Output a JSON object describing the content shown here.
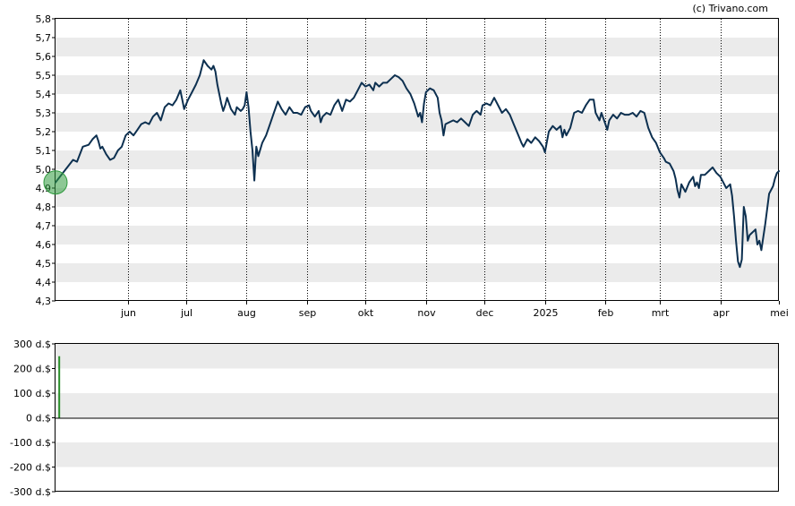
{
  "credit": "(c) Trivano.com",
  "colors": {
    "line": "#0d3050",
    "band": "#ebebeb",
    "marker": "#2f9a3e",
    "volume_bar": "#2a8f2a",
    "frame": "#000000"
  },
  "chart_data": [
    {
      "type": "line",
      "title": "",
      "xlabel": "",
      "ylabel": "",
      "ylim": [
        4.3,
        5.8
      ],
      "grid": true,
      "yticks": [
        "4,3",
        "4,4",
        "4,5",
        "4,6",
        "4,7",
        "4,8",
        "4,9",
        "5,0",
        "5,1",
        "5,2",
        "5,3",
        "5,4",
        "5,5",
        "5,6",
        "5,7",
        "5,8"
      ],
      "xticks": [
        {
          "label": "jun",
          "day": 37
        },
        {
          "label": "jul",
          "day": 67
        },
        {
          "label": "aug",
          "day": 98
        },
        {
          "label": "sep",
          "day": 129
        },
        {
          "label": "okt",
          "day": 159
        },
        {
          "label": "nov",
          "day": 190
        },
        {
          "label": "dec",
          "day": 220
        },
        {
          "label": "2025",
          "day": 251
        },
        {
          "label": "feb",
          "day": 282
        },
        {
          "label": "mrt",
          "day": 310
        },
        {
          "label": "apr",
          "day": 341
        },
        {
          "label": "mei",
          "day": 371
        }
      ],
      "x_range_days": [
        0,
        371
      ],
      "series": [
        {
          "values": [
            [
              0,
              4.93
            ],
            [
              3,
              4.97
            ],
            [
              6,
              5.01
            ],
            [
              9,
              5.05
            ],
            [
              11,
              5.04
            ],
            [
              14,
              5.12
            ],
            [
              17,
              5.13
            ],
            [
              19,
              5.16
            ],
            [
              21,
              5.18
            ],
            [
              22,
              5.15
            ],
            [
              23,
              5.11
            ],
            [
              24,
              5.12
            ],
            [
              26,
              5.08
            ],
            [
              28,
              5.05
            ],
            [
              30,
              5.06
            ],
            [
              32,
              5.1
            ],
            [
              34,
              5.12
            ],
            [
              36,
              5.18
            ],
            [
              38,
              5.2
            ],
            [
              40,
              5.18
            ],
            [
              42,
              5.21
            ],
            [
              44,
              5.24
            ],
            [
              46,
              5.25
            ],
            [
              48,
              5.24
            ],
            [
              50,
              5.28
            ],
            [
              52,
              5.3
            ],
            [
              54,
              5.26
            ],
            [
              56,
              5.33
            ],
            [
              58,
              5.35
            ],
            [
              60,
              5.34
            ],
            [
              62,
              5.37
            ],
            [
              64,
              5.42
            ],
            [
              65,
              5.37
            ],
            [
              66,
              5.32
            ],
            [
              68,
              5.37
            ],
            [
              70,
              5.41
            ],
            [
              72,
              5.45
            ],
            [
              74,
              5.5
            ],
            [
              76,
              5.58
            ],
            [
              78,
              5.55
            ],
            [
              80,
              5.53
            ],
            [
              81,
              5.55
            ],
            [
              82,
              5.52
            ],
            [
              83,
              5.45
            ],
            [
              85,
              5.35
            ],
            [
              86,
              5.31
            ],
            [
              87,
              5.34
            ],
            [
              88,
              5.38
            ],
            [
              90,
              5.32
            ],
            [
              92,
              5.29
            ],
            [
              93,
              5.33
            ],
            [
              95,
              5.31
            ],
            [
              96,
              5.32
            ],
            [
              97,
              5.34
            ],
            [
              98,
              5.41
            ],
            [
              99,
              5.33
            ],
            [
              100,
              5.2
            ],
            [
              101,
              5.1
            ],
            [
              102,
              4.94
            ],
            [
              103,
              5.12
            ],
            [
              104,
              5.07
            ],
            [
              106,
              5.14
            ],
            [
              108,
              5.18
            ],
            [
              110,
              5.24
            ],
            [
              112,
              5.3
            ],
            [
              114,
              5.36
            ],
            [
              116,
              5.32
            ],
            [
              118,
              5.29
            ],
            [
              120,
              5.33
            ],
            [
              122,
              5.3
            ],
            [
              124,
              5.3
            ],
            [
              126,
              5.29
            ],
            [
              128,
              5.33
            ],
            [
              130,
              5.34
            ],
            [
              131,
              5.31
            ],
            [
              133,
              5.28
            ],
            [
              135,
              5.31
            ],
            [
              136,
              5.25
            ],
            [
              137,
              5.28
            ],
            [
              139,
              5.3
            ],
            [
              141,
              5.29
            ],
            [
              143,
              5.34
            ],
            [
              145,
              5.37
            ],
            [
              147,
              5.31
            ],
            [
              149,
              5.37
            ],
            [
              151,
              5.36
            ],
            [
              153,
              5.38
            ],
            [
              155,
              5.42
            ],
            [
              157,
              5.46
            ],
            [
              159,
              5.44
            ],
            [
              161,
              5.45
            ],
            [
              163,
              5.42
            ],
            [
              164,
              5.46
            ],
            [
              166,
              5.44
            ],
            [
              168,
              5.46
            ],
            [
              170,
              5.46
            ],
            [
              172,
              5.48
            ],
            [
              174,
              5.5
            ],
            [
              176,
              5.49
            ],
            [
              178,
              5.47
            ],
            [
              180,
              5.43
            ],
            [
              182,
              5.4
            ],
            [
              184,
              5.35
            ],
            [
              186,
              5.28
            ],
            [
              187,
              5.3
            ],
            [
              188,
              5.25
            ],
            [
              189,
              5.35
            ],
            [
              190,
              5.41
            ],
            [
              192,
              5.43
            ],
            [
              194,
              5.42
            ],
            [
              196,
              5.38
            ],
            [
              197,
              5.3
            ],
            [
              198,
              5.26
            ],
            [
              199,
              5.18
            ],
            [
              200,
              5.24
            ],
            [
              202,
              5.25
            ],
            [
              204,
              5.26
            ],
            [
              206,
              5.25
            ],
            [
              208,
              5.27
            ],
            [
              210,
              5.25
            ],
            [
              212,
              5.23
            ],
            [
              214,
              5.29
            ],
            [
              216,
              5.31
            ],
            [
              218,
              5.29
            ],
            [
              219,
              5.34
            ],
            [
              221,
              5.35
            ],
            [
              223,
              5.34
            ],
            [
              225,
              5.38
            ],
            [
              227,
              5.34
            ],
            [
              229,
              5.3
            ],
            [
              231,
              5.32
            ],
            [
              233,
              5.29
            ],
            [
              235,
              5.24
            ],
            [
              237,
              5.19
            ],
            [
              239,
              5.14
            ],
            [
              240,
              5.12
            ],
            [
              242,
              5.16
            ],
            [
              244,
              5.14
            ],
            [
              246,
              5.17
            ],
            [
              248,
              5.15
            ],
            [
              250,
              5.12
            ],
            [
              251,
              5.09
            ],
            [
              253,
              5.2
            ],
            [
              255,
              5.23
            ],
            [
              257,
              5.21
            ],
            [
              259,
              5.23
            ],
            [
              260,
              5.17
            ],
            [
              261,
              5.21
            ],
            [
              262,
              5.18
            ],
            [
              264,
              5.22
            ],
            [
              266,
              5.3
            ],
            [
              268,
              5.31
            ],
            [
              270,
              5.3
            ],
            [
              272,
              5.34
            ],
            [
              274,
              5.37
            ],
            [
              276,
              5.37
            ],
            [
              277,
              5.3
            ],
            [
              279,
              5.26
            ],
            [
              280,
              5.3
            ],
            [
              282,
              5.24
            ],
            [
              283,
              5.21
            ],
            [
              284,
              5.26
            ],
            [
              286,
              5.29
            ],
            [
              288,
              5.27
            ],
            [
              290,
              5.3
            ],
            [
              292,
              5.29
            ],
            [
              294,
              5.29
            ],
            [
              296,
              5.3
            ],
            [
              298,
              5.28
            ],
            [
              300,
              5.31
            ],
            [
              302,
              5.3
            ],
            [
              304,
              5.22
            ],
            [
              306,
              5.17
            ],
            [
              308,
              5.14
            ],
            [
              310,
              5.09
            ],
            [
              312,
              5.06
            ],
            [
              313,
              5.04
            ],
            [
              315,
              5.03
            ],
            [
              317,
              4.99
            ],
            [
              318,
              4.95
            ],
            [
              319,
              4.89
            ],
            [
              320,
              4.85
            ],
            [
              321,
              4.92
            ],
            [
              323,
              4.88
            ],
            [
              325,
              4.93
            ],
            [
              327,
              4.96
            ],
            [
              328,
              4.91
            ],
            [
              329,
              4.93
            ],
            [
              330,
              4.9
            ],
            [
              331,
              4.97
            ],
            [
              333,
              4.97
            ],
            [
              335,
              4.99
            ],
            [
              337,
              5.01
            ],
            [
              339,
              4.98
            ],
            [
              341,
              4.96
            ],
            [
              342,
              4.94
            ],
            [
              343,
              4.92
            ],
            [
              344,
              4.9
            ],
            [
              346,
              4.92
            ],
            [
              347,
              4.86
            ],
            [
              348,
              4.75
            ],
            [
              349,
              4.62
            ],
            [
              350,
              4.51
            ],
            [
              351,
              4.48
            ],
            [
              352,
              4.52
            ],
            [
              353,
              4.8
            ],
            [
              354,
              4.75
            ],
            [
              355,
              4.62
            ],
            [
              356,
              4.65
            ],
            [
              357,
              4.66
            ],
            [
              358,
              4.67
            ],
            [
              359,
              4.68
            ],
            [
              360,
              4.6
            ],
            [
              361,
              4.62
            ],
            [
              362,
              4.57
            ],
            [
              364,
              4.71
            ],
            [
              366,
              4.87
            ],
            [
              368,
              4.91
            ],
            [
              369,
              4.95
            ],
            [
              370,
              4.98
            ],
            [
              371,
              4.99
            ]
          ]
        }
      ],
      "start_marker_day": 0
    },
    {
      "type": "bar",
      "title": "",
      "xlabel": "",
      "ylabel": "",
      "ylim": [
        -300,
        300
      ],
      "grid": true,
      "yticks": [
        "-300 d.$",
        "-200 d.$",
        "-100 d.$",
        "0 d.$",
        "100 d.$",
        "200 d.$",
        "300 d.$"
      ],
      "bars": [
        {
          "day": 1,
          "value": 250
        }
      ]
    }
  ]
}
